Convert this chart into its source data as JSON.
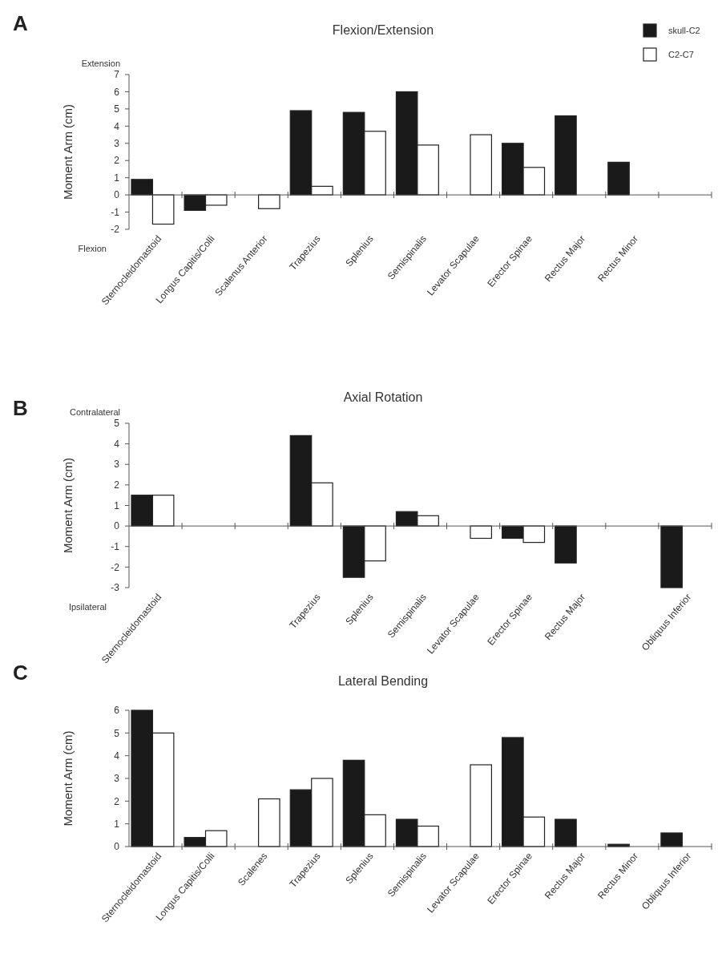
{
  "chart_data": [
    {
      "type": "bar",
      "title": "Flexion/Extension",
      "ylabel": "Moment Arm (cm)",
      "annotations": [
        "A",
        "Extension",
        "Flexion"
      ],
      "categories": [
        "Sternocleidomastoid",
        "Longus Capitis/Colli",
        "Scalenus Anterior",
        "Trapezius",
        "Splenius",
        "Semispinalis",
        "Levator Scapulae",
        "Erector Spinae",
        "Rectus Major",
        "Rectus Minor",
        null
      ],
      "series": [
        {
          "name": "skull-C2",
          "color": "#1a1a1a",
          "values": [
            0.9,
            -0.9,
            null,
            4.9,
            4.8,
            6.0,
            null,
            3.0,
            4.6,
            1.9,
            null
          ]
        },
        {
          "name": "C2-C7",
          "color": "#ffffff",
          "values": [
            -1.7,
            -0.6,
            -0.8,
            0.5,
            3.7,
            2.9,
            3.5,
            1.6,
            null,
            null,
            null
          ]
        }
      ],
      "ylim": [
        -2,
        7
      ],
      "yticks": [
        -2,
        -1,
        0,
        1,
        2,
        3,
        4,
        5,
        6,
        7
      ],
      "legend": "top right"
    },
    {
      "type": "bar",
      "title": "Axial Rotation",
      "ylabel": "Moment Arm (cm)",
      "annotations": [
        "B",
        "Contralateral",
        "Ipsilateral"
      ],
      "categories": [
        "Sternocleidomastoid",
        null,
        null,
        "Trapezius",
        "Splenius",
        "Semispinalis",
        "Levator Scapulae",
        "Erector Spinae",
        "Rectus Major",
        null,
        "Obliquus Inferior"
      ],
      "series": [
        {
          "color": "#1a1a1a",
          "values": [
            1.5,
            null,
            null,
            4.4,
            -2.5,
            0.7,
            null,
            -0.6,
            -1.8,
            null,
            -3.0
          ]
        },
        {
          "color": "#ffffff",
          "values": [
            1.5,
            null,
            null,
            2.1,
            -1.7,
            0.5,
            -0.6,
            -0.8,
            null,
            null,
            null
          ]
        }
      ],
      "ylim": [
        -3,
        5
      ],
      "yticks": [
        -3,
        -2,
        -1,
        0,
        1,
        2,
        3,
        4,
        5
      ],
      "legend": false
    },
    {
      "type": "bar",
      "title": "Lateral Bending",
      "ylabel": "Moment Arm (cm)",
      "annotations": [
        "C"
      ],
      "categories": [
        "Sternocleidomastoid",
        "Longus Capitis/Colli",
        "Scalenes",
        "Trapezius",
        "Splenius",
        "Semispinalis",
        "Levator Scapulae",
        "Erector Spinae",
        "Rectus Major",
        "Rectus Minor",
        "Obliquus Inferior"
      ],
      "series": [
        {
          "color": "#1a1a1a",
          "values": [
            6.0,
            0.4,
            null,
            2.5,
            3.8,
            1.2,
            null,
            4.8,
            1.2,
            0.1,
            0.6
          ]
        },
        {
          "color": "#ffffff",
          "values": [
            5.0,
            0.7,
            2.1,
            3.0,
            1.4,
            0.9,
            3.6,
            1.3,
            null,
            null,
            null
          ]
        }
      ],
      "ylim": [
        0,
        6
      ],
      "yticks": [
        0,
        1,
        2,
        3,
        4,
        5,
        6
      ],
      "legend": false
    }
  ]
}
